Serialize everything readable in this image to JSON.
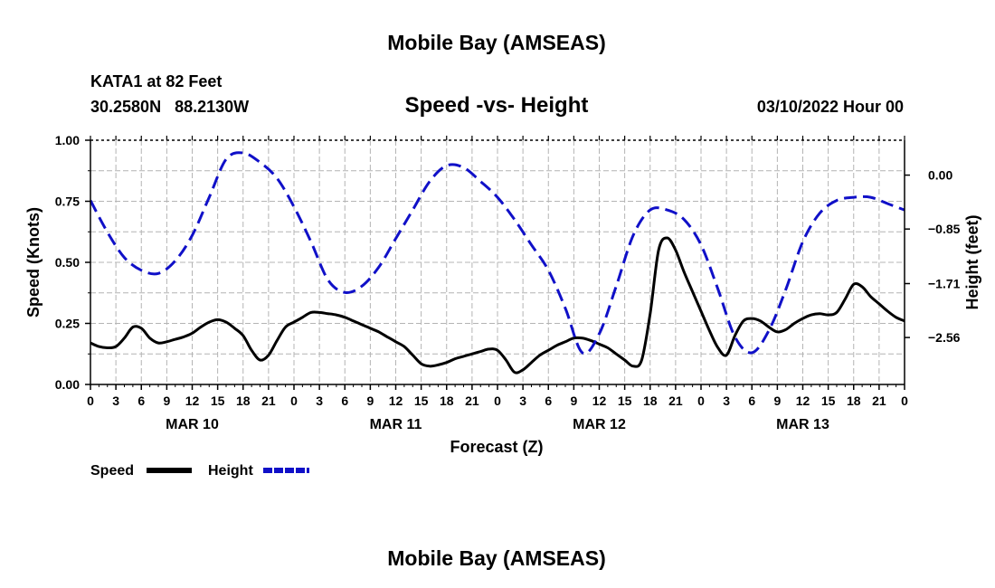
{
  "page": {
    "top_title": "Mobile Bay (AMSEAS)",
    "bottom_title": "Mobile Bay (AMSEAS)"
  },
  "station": {
    "name_line": "KATA1 at 82 Feet",
    "coords_line": "30.2580N   88.2130W",
    "datetime": "03/10/2022 Hour 00"
  },
  "legend": {
    "speed_label": "Speed",
    "height_label": "Height"
  },
  "chart_data": {
    "type": "line",
    "title": "Speed -vs- Height",
    "xlabel": "Forecast (Z)",
    "ylabel": "Speed (Knots)",
    "y2label": "Height (feet)",
    "xlim": [
      0,
      96
    ],
    "ylim": [
      0,
      1.0
    ],
    "y2lim": [
      -3.3,
      0.55
    ],
    "grid": true,
    "x_ticks": [
      0,
      3,
      6,
      9,
      12,
      15,
      18,
      21,
      24,
      27,
      30,
      33,
      36,
      39,
      42,
      45,
      48,
      51,
      54,
      57,
      60,
      63,
      66,
      69,
      72,
      75,
      78,
      81,
      84,
      87,
      90,
      93,
      96
    ],
    "x_tick_labels": [
      "0",
      "3",
      "6",
      "9",
      "12",
      "15",
      "18",
      "21",
      "0",
      "3",
      "6",
      "9",
      "12",
      "15",
      "18",
      "21",
      "0",
      "3",
      "6",
      "9",
      "12",
      "15",
      "18",
      "21",
      "0",
      "3",
      "6",
      "9",
      "12",
      "15",
      "18",
      "21",
      "0"
    ],
    "y_ticks": [
      0.0,
      0.25,
      0.5,
      0.75,
      1.0
    ],
    "y_tick_labels": [
      "0.00",
      "0.25",
      "0.50",
      "0.75",
      "1.00"
    ],
    "y2_ticks": [
      0.0,
      -0.85,
      -1.71,
      -2.56
    ],
    "y2_tick_labels": [
      "0.00",
      "−0.85",
      "−1.71",
      "−2.56"
    ],
    "day_labels": [
      {
        "x": 12,
        "label": "MAR 10"
      },
      {
        "x": 36,
        "label": "MAR 11"
      },
      {
        "x": 60,
        "label": "MAR 12"
      },
      {
        "x": 84,
        "label": "MAR 13"
      }
    ],
    "series": [
      {
        "name": "Speed",
        "axis": "left",
        "color": "#000000",
        "style": "solid",
        "x": [
          0,
          1,
          2,
          3,
          4,
          5,
          6,
          7,
          8,
          9,
          10,
          11,
          12,
          13,
          14,
          15,
          16,
          17,
          18,
          19,
          20,
          21,
          22,
          23,
          24,
          25,
          26,
          27,
          28,
          29,
          30,
          31,
          32,
          33,
          34,
          35,
          36,
          37,
          38,
          39,
          40,
          41,
          42,
          43,
          44,
          45,
          46,
          47,
          48,
          49,
          50,
          51,
          52,
          53,
          54,
          55,
          56,
          57,
          58,
          59,
          60,
          61,
          62,
          63,
          64,
          65,
          66,
          67,
          68,
          69,
          70,
          71,
          72,
          73,
          74,
          75,
          76,
          77,
          78,
          79,
          80,
          81,
          82,
          83,
          84,
          85,
          86,
          87,
          88,
          89,
          90,
          91,
          92,
          93,
          94,
          95,
          96
        ],
        "values": [
          0.17,
          0.155,
          0.15,
          0.155,
          0.19,
          0.235,
          0.23,
          0.19,
          0.17,
          0.175,
          0.185,
          0.195,
          0.21,
          0.235,
          0.255,
          0.265,
          0.255,
          0.23,
          0.2,
          0.14,
          0.1,
          0.12,
          0.18,
          0.235,
          0.255,
          0.275,
          0.295,
          0.295,
          0.29,
          0.285,
          0.275,
          0.26,
          0.245,
          0.23,
          0.215,
          0.195,
          0.175,
          0.155,
          0.12,
          0.085,
          0.075,
          0.08,
          0.09,
          0.105,
          0.115,
          0.125,
          0.135,
          0.145,
          0.14,
          0.1,
          0.05,
          0.06,
          0.09,
          0.12,
          0.14,
          0.16,
          0.175,
          0.19,
          0.19,
          0.18,
          0.165,
          0.15,
          0.125,
          0.1,
          0.075,
          0.1,
          0.29,
          0.55,
          0.6,
          0.55,
          0.46,
          0.38,
          0.3,
          0.22,
          0.15,
          0.12,
          0.2,
          0.26,
          0.27,
          0.26,
          0.235,
          0.215,
          0.225,
          0.25,
          0.27,
          0.285,
          0.29,
          0.285,
          0.295,
          0.35,
          0.41,
          0.4,
          0.36,
          0.33,
          0.3,
          0.275,
          0.26
        ]
      },
      {
        "name": "Height",
        "axis": "right",
        "color": "#1010c8",
        "style": "dashed",
        "x": [
          0,
          2,
          4,
          6,
          8,
          10,
          12,
          14,
          16,
          18,
          20,
          22,
          24,
          26,
          28,
          30,
          32,
          34,
          36,
          38,
          40,
          42,
          44,
          46,
          48,
          50,
          52,
          54,
          56,
          58,
          60,
          62,
          64,
          66,
          68,
          70,
          72,
          74,
          76,
          78,
          80,
          82,
          84,
          86,
          88,
          90,
          92,
          94,
          96
        ],
        "values": [
          -0.4,
          -0.9,
          -1.3,
          -1.5,
          -1.55,
          -1.35,
          -0.95,
          -0.35,
          0.25,
          0.35,
          0.2,
          -0.05,
          -0.5,
          -1.05,
          -1.65,
          -1.85,
          -1.75,
          -1.45,
          -1.0,
          -0.55,
          -0.1,
          0.15,
          0.12,
          -0.1,
          -0.35,
          -0.7,
          -1.1,
          -1.5,
          -2.1,
          -2.8,
          -2.5,
          -1.75,
          -0.95,
          -0.55,
          -0.55,
          -0.7,
          -1.1,
          -1.8,
          -2.55,
          -2.8,
          -2.45,
          -1.8,
          -1.05,
          -0.6,
          -0.4,
          -0.35,
          -0.35,
          -0.45,
          -0.55
        ]
      }
    ]
  }
}
